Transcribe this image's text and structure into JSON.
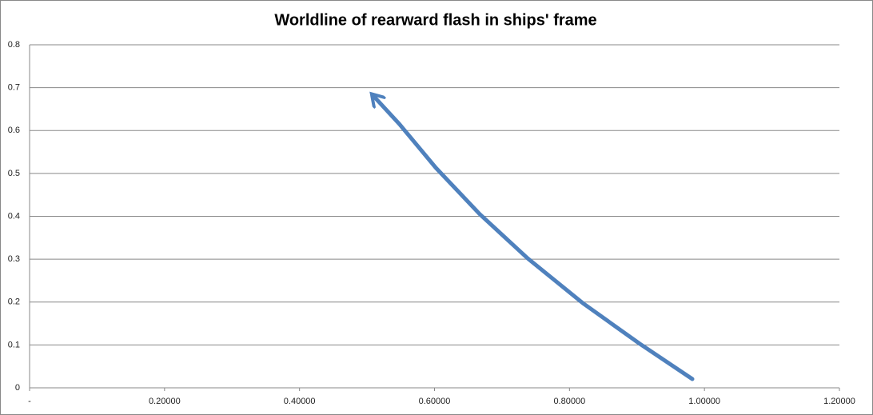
{
  "chart_data": {
    "type": "line",
    "title": "Worldline of rearward flash in ships' frame",
    "x": [
      0.982,
      0.904,
      0.821,
      0.738,
      0.667,
      0.602,
      0.548,
      0.51
    ],
    "values": [
      0.0205,
      0.103,
      0.196,
      0.302,
      0.405,
      0.513,
      0.615,
      0.68
    ],
    "color": "#4f81bd",
    "arrow_end": true,
    "xlim": [
      0,
      1.2
    ],
    "xticks": [
      {
        "value": 0,
        "label": "-"
      },
      {
        "value": 0.2,
        "label": "0.20000"
      },
      {
        "value": 0.4,
        "label": "0.40000"
      },
      {
        "value": 0.6,
        "label": "0.60000"
      },
      {
        "value": 0.8,
        "label": "0.80000"
      },
      {
        "value": 1.0,
        "label": "1.00000"
      },
      {
        "value": 1.2,
        "label": "1.20000"
      }
    ],
    "ylim": [
      0,
      0.8
    ],
    "yticks": [
      0,
      0.1,
      0.2,
      0.3,
      0.4,
      0.5,
      0.6,
      0.7,
      0.8
    ],
    "grid": true
  }
}
